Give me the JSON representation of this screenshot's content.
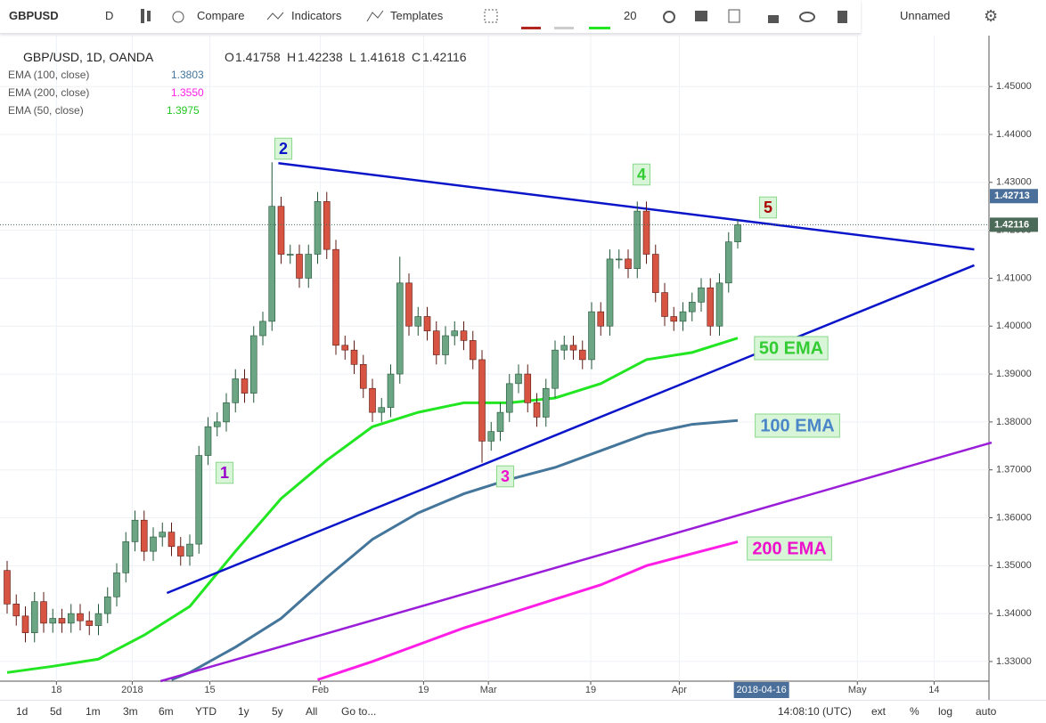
{
  "toolbar": {
    "symbol": "GBPUSD",
    "interval": "D",
    "items": [
      "Compare",
      "Indicators",
      "Templates"
    ],
    "size": "20",
    "layout": "Unnamed"
  },
  "legend": {
    "title": "GBP/USD, 1D, OANDA",
    "ohlc": [
      {
        "key": "O",
        "value": "1.41758"
      },
      {
        "key": "H",
        "value": "1.42238"
      },
      {
        "key": "L",
        "value": "1.41618"
      },
      {
        "key": "C",
        "value": "1.42116"
      }
    ],
    "studies": [
      {
        "name": "EMA (100, close)",
        "value": "1.3803"
      },
      {
        "name": "EMA (200, close)",
        "value": "1.3550"
      },
      {
        "name": "EMA (50, close)",
        "value": "1.3975"
      }
    ]
  },
  "chart_data": {
    "type": "candlestick",
    "up_color": "#6ba583",
    "down_color": "#d75442",
    "grid": true,
    "xlim": [
      -0.78,
      107.51
    ],
    "ylim": [
      1.3259,
      1.4597
    ],
    "yticks": [
      {
        "value": 1.33,
        "label": "1.33000"
      },
      {
        "value": 1.34,
        "label": "1.34000"
      },
      {
        "value": 1.35,
        "label": "1.35000"
      },
      {
        "value": 1.36,
        "label": "1.36000"
      },
      {
        "value": 1.37,
        "label": "1.37000"
      },
      {
        "value": 1.38,
        "label": "1.38000"
      },
      {
        "value": 1.39,
        "label": "1.39000"
      },
      {
        "value": 1.4,
        "label": "1.40000"
      },
      {
        "value": 1.41,
        "label": "1.41000"
      },
      {
        "value": 1.42,
        "label": "1.42000"
      },
      {
        "value": 1.43,
        "label": "1.43000"
      },
      {
        "value": 1.44,
        "label": "1.44000"
      },
      {
        "value": 1.45,
        "label": "1.45000"
      }
    ],
    "xticks": [
      {
        "value": 5.4,
        "label": "18"
      },
      {
        "value": 13.7,
        "label": "2018"
      },
      {
        "value": 22.2,
        "label": "15"
      },
      {
        "value": 34.3,
        "label": "Feb"
      },
      {
        "value": 45.6,
        "label": "19"
      },
      {
        "value": 52.7,
        "label": "Mar"
      },
      {
        "value": 63.9,
        "label": "19"
      },
      {
        "value": 73.6,
        "label": "Apr"
      },
      {
        "value": 93.1,
        "label": "May"
      },
      {
        "value": 101.5,
        "label": "14"
      }
    ],
    "cursor_date": {
      "value": 82.6,
      "label": "2018-04-16"
    },
    "price_tags": [
      {
        "value": 1.42713,
        "label": "1.42713",
        "color": "#4a6f9a"
      },
      {
        "value": 1.42116,
        "label": "1.42116",
        "color": "#4b6b58"
      }
    ],
    "x": [
      0,
      1,
      2,
      3,
      4,
      5,
      6,
      7,
      8,
      9,
      10,
      11,
      12,
      13,
      14,
      15,
      16,
      17,
      18,
      19,
      20,
      21,
      22,
      23,
      24,
      25,
      26,
      27,
      28,
      29,
      30,
      31,
      32,
      33,
      34,
      35,
      36,
      37,
      38,
      39,
      40,
      41,
      42,
      43,
      44,
      45,
      46,
      47,
      48,
      49,
      50,
      51,
      52,
      53,
      54,
      55,
      56,
      57,
      58,
      59,
      60,
      61,
      62,
      63,
      64,
      65,
      66,
      67,
      68,
      69,
      70,
      71,
      72,
      73,
      74,
      75,
      76,
      77,
      78,
      79,
      80
    ],
    "open": [
      1.349,
      1.342,
      1.3395,
      1.336,
      1.3425,
      1.338,
      1.339,
      1.338,
      1.34,
      1.3385,
      1.3375,
      1.34,
      1.3435,
      1.3485,
      1.355,
      1.3595,
      1.353,
      1.356,
      1.357,
      1.354,
      1.352,
      1.3545,
      1.373,
      1.379,
      1.38,
      1.384,
      1.389,
      1.386,
      1.398,
      1.401,
      1.425,
      1.415,
      1.415,
      1.41,
      1.415,
      1.426,
      1.416,
      1.396,
      1.395,
      1.392,
      1.387,
      1.382,
      1.383,
      1.39,
      1.409,
      1.4,
      1.402,
      1.399,
      1.394,
      1.398,
      1.399,
      1.397,
      1.393,
      1.376,
      1.378,
      1.382,
      1.388,
      1.39,
      1.384,
      1.381,
      1.387,
      1.395,
      1.396,
      1.395,
      1.393,
      1.403,
      1.4,
      1.414,
      1.414,
      1.412,
      1.424,
      1.415,
      1.407,
      1.402,
      1.401,
      1.403,
      1.405,
      1.408,
      1.4,
      1.409,
      1.41758
    ],
    "high": [
      1.351,
      1.344,
      1.3415,
      1.3445,
      1.3445,
      1.341,
      1.341,
      1.342,
      1.342,
      1.3405,
      1.342,
      1.3455,
      1.3505,
      1.357,
      1.3615,
      1.3615,
      1.358,
      1.359,
      1.359,
      1.356,
      1.3565,
      1.375,
      1.381,
      1.382,
      1.386,
      1.391,
      1.391,
      1.4,
      1.403,
      1.4342,
      1.427,
      1.417,
      1.417,
      1.417,
      1.428,
      1.428,
      1.418,
      1.398,
      1.397,
      1.394,
      1.389,
      1.385,
      1.392,
      1.4145,
      1.411,
      1.404,
      1.404,
      1.401,
      1.4,
      1.401,
      1.401,
      1.399,
      1.395,
      1.38,
      1.384,
      1.39,
      1.392,
      1.392,
      1.386,
      1.389,
      1.397,
      1.398,
      1.398,
      1.397,
      1.405,
      1.405,
      1.416,
      1.416,
      1.416,
      1.426,
      1.426,
      1.417,
      1.409,
      1.404,
      1.405,
      1.407,
      1.41,
      1.41,
      1.411,
      1.4196,
      1.42238
    ],
    "low": [
      1.34,
      1.3375,
      1.334,
      1.334,
      1.336,
      1.336,
      1.336,
      1.336,
      1.3365,
      1.3355,
      1.3355,
      1.338,
      1.3415,
      1.3465,
      1.353,
      1.351,
      1.351,
      1.354,
      1.352,
      1.35,
      1.35,
      1.3525,
      1.371,
      1.377,
      1.378,
      1.382,
      1.384,
      1.384,
      1.396,
      1.399,
      1.413,
      1.413,
      1.408,
      1.408,
      1.413,
      1.414,
      1.394,
      1.393,
      1.39,
      1.385,
      1.38,
      1.38,
      1.381,
      1.388,
      1.398,
      1.398,
      1.397,
      1.392,
      1.392,
      1.396,
      1.395,
      1.391,
      1.3715,
      1.374,
      1.376,
      1.38,
      1.386,
      1.382,
      1.379,
      1.379,
      1.385,
      1.393,
      1.393,
      1.391,
      1.391,
      1.398,
      1.398,
      1.412,
      1.41,
      1.41,
      1.413,
      1.405,
      1.4,
      1.399,
      1.399,
      1.401,
      1.403,
      1.398,
      1.398,
      1.407,
      1.41618
    ],
    "close": [
      1.342,
      1.3395,
      1.336,
      1.3425,
      1.338,
      1.339,
      1.338,
      1.34,
      1.3385,
      1.3375,
      1.34,
      1.3435,
      1.3485,
      1.355,
      1.3595,
      1.353,
      1.356,
      1.357,
      1.354,
      1.352,
      1.3545,
      1.373,
      1.379,
      1.38,
      1.384,
      1.389,
      1.386,
      1.398,
      1.401,
      1.425,
      1.415,
      1.415,
      1.41,
      1.415,
      1.426,
      1.416,
      1.396,
      1.395,
      1.392,
      1.387,
      1.382,
      1.383,
      1.39,
      1.409,
      1.4,
      1.402,
      1.399,
      1.394,
      1.398,
      1.399,
      1.397,
      1.393,
      1.376,
      1.378,
      1.382,
      1.388,
      1.39,
      1.384,
      1.381,
      1.387,
      1.395,
      1.396,
      1.395,
      1.393,
      1.403,
      1.4,
      1.414,
      1.414,
      1.412,
      1.424,
      1.415,
      1.407,
      1.402,
      1.401,
      1.403,
      1.405,
      1.408,
      1.4,
      1.409,
      1.41758,
      1.42116
    ],
    "series": [
      {
        "name": "EMA (50, close)",
        "color": "#22e622",
        "x": [
          0,
          5,
          10,
          15,
          20,
          25,
          30,
          35,
          40,
          45,
          50,
          55,
          60,
          65,
          70,
          75,
          80
        ],
        "values": [
          1.3277,
          1.329,
          1.3305,
          1.3355,
          1.3415,
          1.353,
          1.364,
          1.372,
          1.379,
          1.382,
          1.384,
          1.384,
          1.385,
          1.388,
          1.393,
          1.3945,
          1.3975
        ]
      },
      {
        "name": "EMA (100, close)",
        "color": "#44759a",
        "x": [
          18,
          20,
          25,
          30,
          35,
          40,
          45,
          50,
          55,
          60,
          65,
          70,
          75,
          80
        ],
        "values": [
          1.3262,
          1.3277,
          1.333,
          1.339,
          1.3475,
          1.3555,
          1.361,
          1.365,
          1.368,
          1.3705,
          1.374,
          1.3775,
          1.3795,
          1.3803
        ]
      },
      {
        "name": "EMA (200, close)",
        "color": "#ff1ee6",
        "x": [
          34,
          40,
          45,
          50,
          55,
          60,
          65,
          70,
          75,
          80
        ],
        "values": [
          1.3262,
          1.33,
          1.3335,
          1.337,
          1.34,
          1.343,
          1.346,
          1.35,
          1.3525,
          1.355
        ]
      }
    ],
    "trendlines": [
      {
        "color": "#0a14c8",
        "x": [
          29.7,
          105.9
        ],
        "y": [
          1.434,
          1.416
        ]
      },
      {
        "color": "#0a14c8",
        "x": [
          17.5,
          105.9
        ],
        "y": [
          1.3443,
          1.4127
        ]
      },
      {
        "color": "#9a1ed8",
        "x": [
          16.8,
          107.8
        ],
        "y": [
          1.3259,
          1.3757
        ]
      }
    ],
    "annotations": [
      {
        "text": "1",
        "color": "#9900cc"
      },
      {
        "text": "2",
        "color": "#0a14c8"
      },
      {
        "text": "3",
        "color": "#ee11cc"
      },
      {
        "text": "4",
        "color": "#33cc33"
      },
      {
        "text": "5",
        "color": "#aa0000"
      },
      {
        "text": "50 EMA",
        "color": "#33cc33"
      },
      {
        "text": "100 EMA",
        "color": "#4a86c8"
      },
      {
        "text": "200 EMA",
        "color": "#ee11cc"
      }
    ]
  },
  "bottom_bar": {
    "ranges": [
      "1d",
      "5d",
      "1m",
      "3m",
      "6m",
      "YTD",
      "1y",
      "5y",
      "All"
    ],
    "goto": "Go to...",
    "clock": "14:08:10 (UTC)",
    "options": [
      "ext",
      "%",
      "log",
      "auto"
    ]
  }
}
